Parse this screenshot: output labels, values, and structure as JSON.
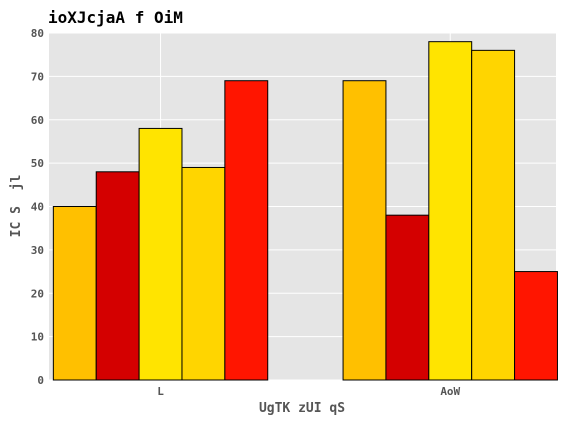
{
  "chart_data": {
    "type": "bar",
    "title": "ioXJcjaA f OiM",
    "xlabel": "UgTK zUI qS",
    "ylabel": "IC S  jl",
    "categories": [
      "L",
      "AoW"
    ],
    "series": [
      {
        "values": [
          40,
          69
        ],
        "color": "#ffc000"
      },
      {
        "values": [
          48,
          38
        ],
        "color": "#d40000"
      },
      {
        "values": [
          58,
          78
        ],
        "color": "#ffe400"
      },
      {
        "values": [
          49,
          76
        ],
        "color": "#ffd500"
      },
      {
        "values": [
          69,
          25
        ],
        "color": "#ff1500"
      }
    ],
    "ylim": [
      0,
      80
    ],
    "yticks": [
      0,
      10,
      20,
      30,
      40,
      50,
      60,
      70,
      80
    ],
    "grid": true,
    "background": "#e5e5e5"
  }
}
